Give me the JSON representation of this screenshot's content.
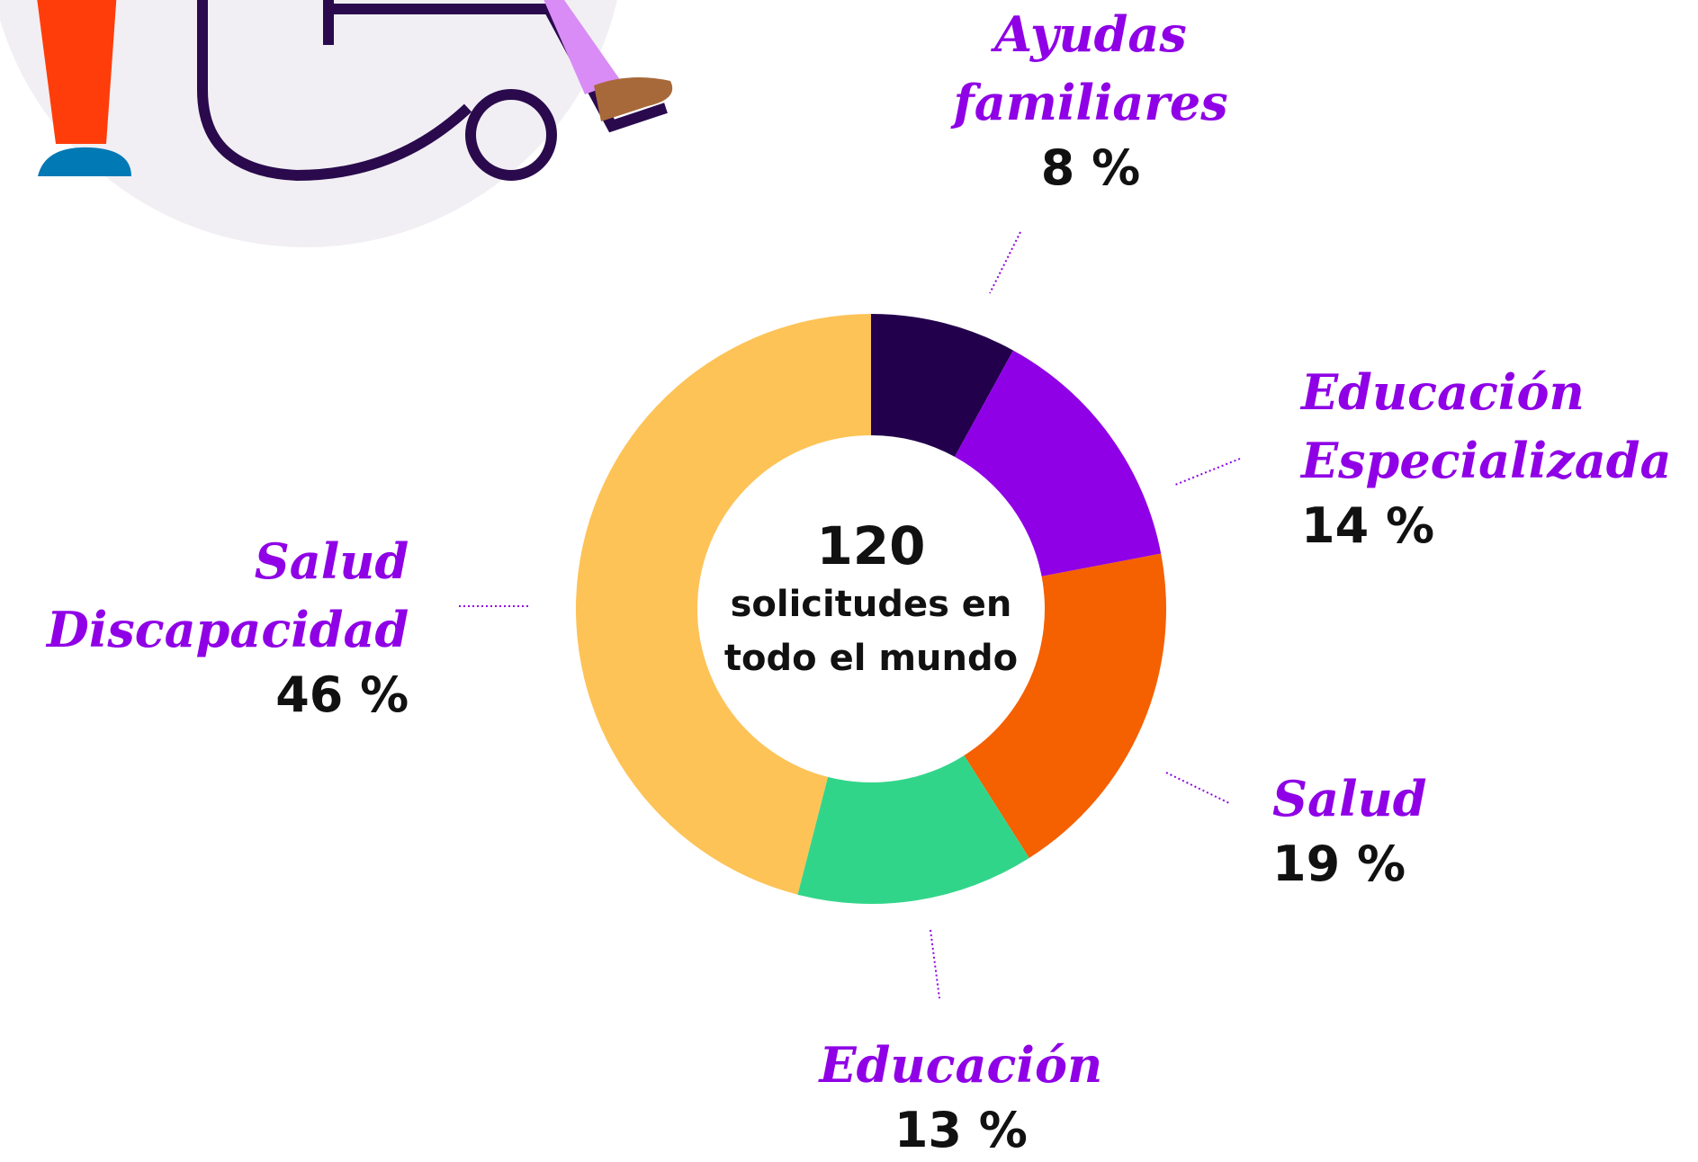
{
  "chart_data": {
    "type": "donut",
    "center_value": 120,
    "center_text": "solicitudes en todo el mundo",
    "categories": [
      "Ayudas familiares",
      "Educación Especializada",
      "Salud",
      "Educación",
      "Salud Discapacidad"
    ],
    "values": [
      8,
      14,
      19,
      13,
      46
    ],
    "value_labels": [
      "8 %",
      "14 %",
      "19 %",
      "13 %",
      "46 %"
    ],
    "colors": [
      "#23004c",
      "#9000e6",
      "#f56000",
      "#31d58a",
      "#fdc357"
    ]
  }
}
